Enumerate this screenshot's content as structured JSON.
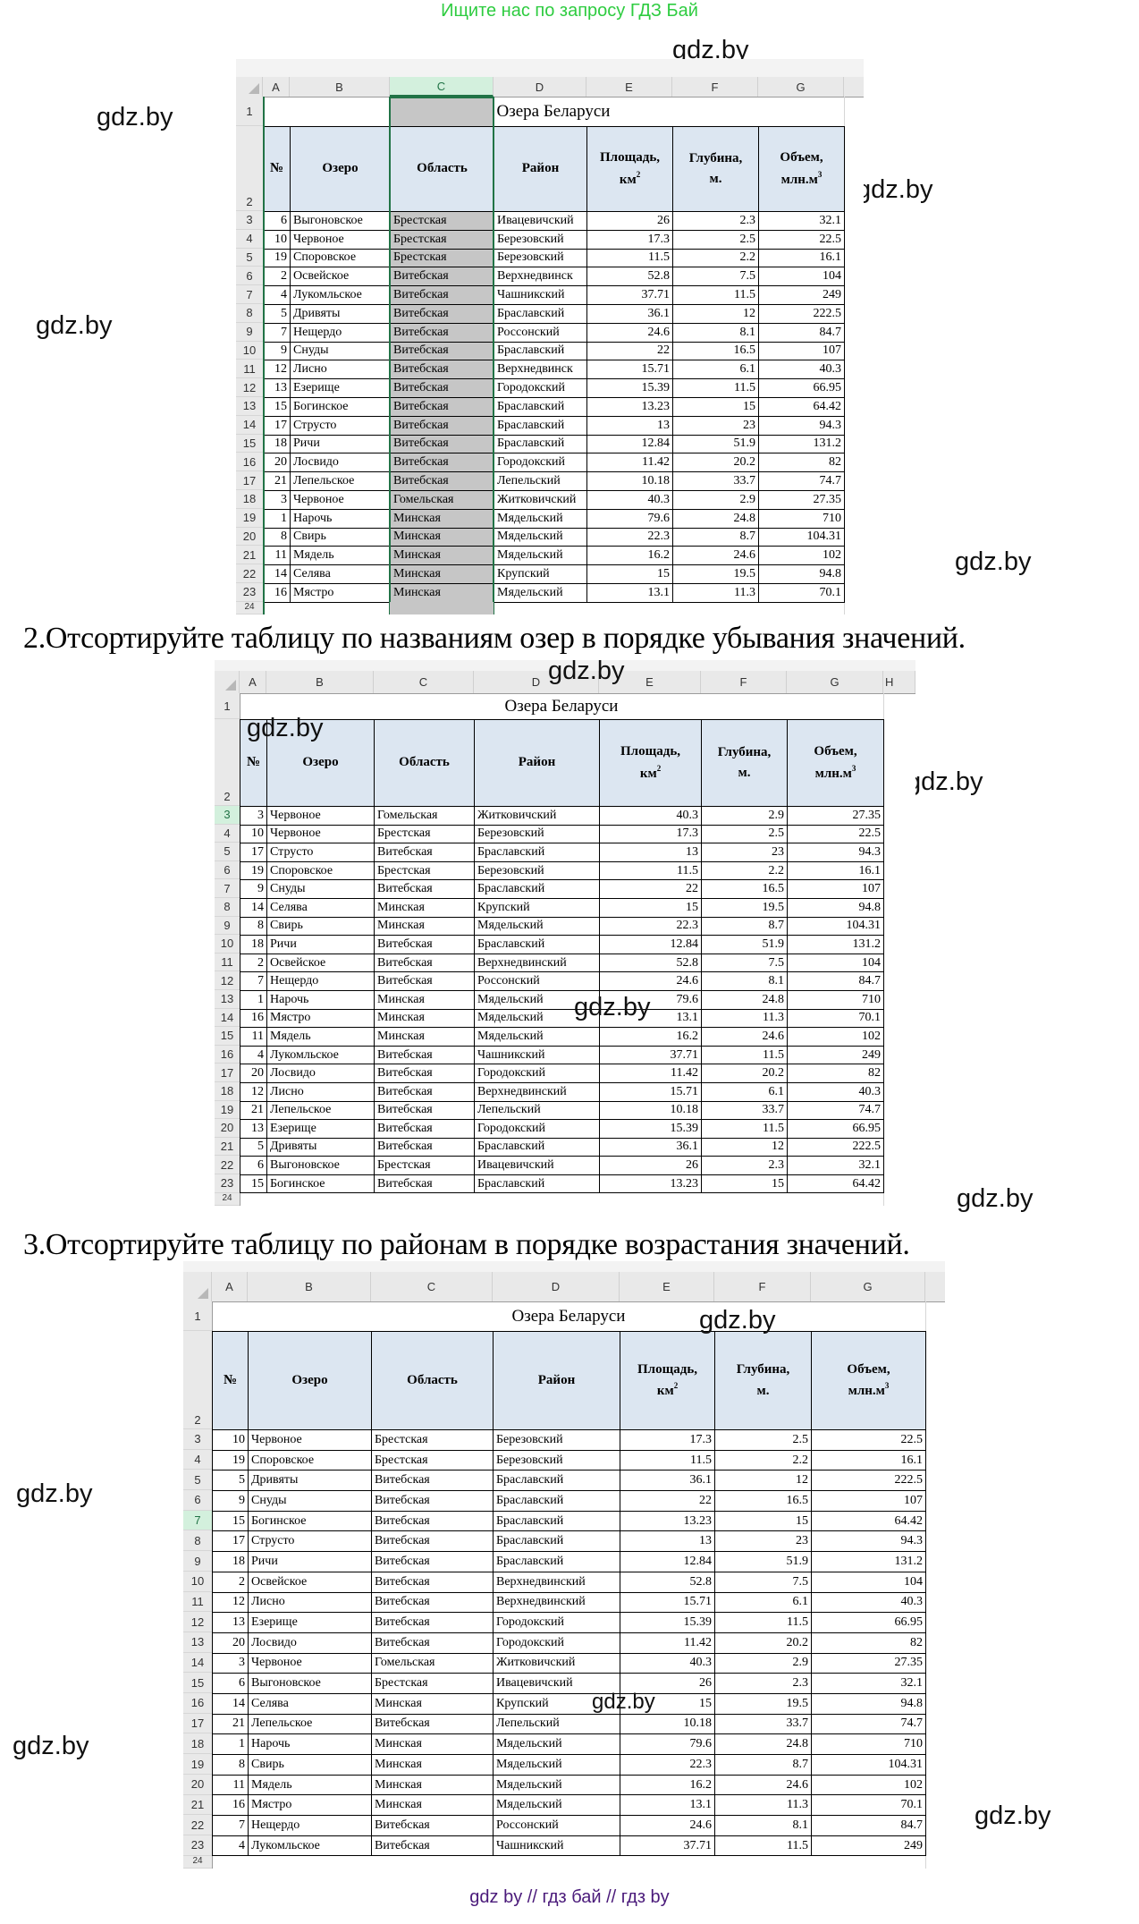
{
  "banner": "Ищите нас по запросу ГДЗ Бай",
  "watermark": "gdz.by",
  "footer": "gdz by  //  гдз бай  //  гдз by",
  "colors": {
    "banner_green": "#2ecc40",
    "footer_purple": "#4a1a7a",
    "header_fill": "#dce6f1",
    "selected_fill": "#c6c6c6",
    "excel_green": "#217346"
  },
  "columns": [
    "A",
    "B",
    "C",
    "D",
    "E",
    "F",
    "G"
  ],
  "sheet_title": "Озера Беларуси",
  "headers": {
    "num": "№",
    "lake": "Озеро",
    "region": "Область",
    "district": "Район",
    "area": "Площадь,",
    "area_unit": "км",
    "area_sup": "2",
    "depth": "Глубина,",
    "depth_unit": "м.",
    "volume": "Объем,",
    "volume_unit": "млн.м",
    "volume_sup": "3"
  },
  "tables": [
    {
      "instruction": "",
      "selected_column": "C",
      "rows": [
        {
          "n": "6",
          "lake": "Выгоновское",
          "region": "Брестская",
          "district": "Ивацевичский",
          "area": "26",
          "depth": "2.3",
          "volume": "32.1"
        },
        {
          "n": "10",
          "lake": "Червоное",
          "region": "Брестская",
          "district": "Березовский",
          "area": "17.3",
          "depth": "2.5",
          "volume": "22.5"
        },
        {
          "n": "19",
          "lake": "Споровское",
          "region": "Брестская",
          "district": "Березовский",
          "area": "11.5",
          "depth": "2.2",
          "volume": "16.1"
        },
        {
          "n": "2",
          "lake": "Освейское",
          "region": "Витебская",
          "district": "Верхнедвинск",
          "area": "52.8",
          "depth": "7.5",
          "volume": "104"
        },
        {
          "n": "4",
          "lake": "Лукомльское",
          "region": "Витебская",
          "district": "Чашникский",
          "area": "37.71",
          "depth": "11.5",
          "volume": "249"
        },
        {
          "n": "5",
          "lake": "Дривяты",
          "region": "Витебская",
          "district": "Браславский",
          "area": "36.1",
          "depth": "12",
          "volume": "222.5"
        },
        {
          "n": "7",
          "lake": "Нещердо",
          "region": "Витебская",
          "district": "Россонский",
          "area": "24.6",
          "depth": "8.1",
          "volume": "84.7"
        },
        {
          "n": "9",
          "lake": "Снуды",
          "region": "Витебская",
          "district": "Браславский",
          "area": "22",
          "depth": "16.5",
          "volume": "107"
        },
        {
          "n": "12",
          "lake": "Лисно",
          "region": "Витебская",
          "district": "Верхнедвинск",
          "area": "15.71",
          "depth": "6.1",
          "volume": "40.3"
        },
        {
          "n": "13",
          "lake": "Езерище",
          "region": "Витебская",
          "district": "Городокский",
          "area": "15.39",
          "depth": "11.5",
          "volume": "66.95"
        },
        {
          "n": "15",
          "lake": "Богинское",
          "region": "Витебская",
          "district": "Браславский",
          "area": "13.23",
          "depth": "15",
          "volume": "64.42"
        },
        {
          "n": "17",
          "lake": "Струсто",
          "region": "Витебская",
          "district": "Браславский",
          "area": "13",
          "depth": "23",
          "volume": "94.3"
        },
        {
          "n": "18",
          "lake": "Ричи",
          "region": "Витебская",
          "district": "Браславский",
          "area": "12.84",
          "depth": "51.9",
          "volume": "131.2"
        },
        {
          "n": "20",
          "lake": "Лосвидо",
          "region": "Витебская",
          "district": "Городокский",
          "area": "11.42",
          "depth": "20.2",
          "volume": "82"
        },
        {
          "n": "21",
          "lake": "Лепельское",
          "region": "Витебская",
          "district": "Лепельский",
          "area": "10.18",
          "depth": "33.7",
          "volume": "74.7"
        },
        {
          "n": "3",
          "lake": "Червоное",
          "region": "Гомельская",
          "district": "Житковичский",
          "area": "40.3",
          "depth": "2.9",
          "volume": "27.35"
        },
        {
          "n": "1",
          "lake": "Нарочь",
          "region": "Минская",
          "district": "Мядельский",
          "area": "79.6",
          "depth": "24.8",
          "volume": "710"
        },
        {
          "n": "8",
          "lake": "Свирь",
          "region": "Минская",
          "district": "Мядельский",
          "area": "22.3",
          "depth": "8.7",
          "volume": "104.31"
        },
        {
          "n": "11",
          "lake": "Мядель",
          "region": "Минская",
          "district": "Мядельский",
          "area": "16.2",
          "depth": "24.6",
          "volume": "102"
        },
        {
          "n": "14",
          "lake": "Селява",
          "region": "Минская",
          "district": "Крупский",
          "area": "15",
          "depth": "19.5",
          "volume": "94.8"
        },
        {
          "n": "16",
          "lake": "Мястро",
          "region": "Минская",
          "district": "Мядельский",
          "area": "13.1",
          "depth": "11.3",
          "volume": "70.1"
        }
      ]
    },
    {
      "instruction": "2.Отсортируйте таблицу по названиям озер в порядке убывания значений.",
      "extra_column": "H",
      "rows": [
        {
          "n": "3",
          "lake": "Червоное",
          "region": "Гомельская",
          "district": "Житковичский",
          "area": "40.3",
          "depth": "2.9",
          "volume": "27.35"
        },
        {
          "n": "10",
          "lake": "Червоное",
          "region": "Брестская",
          "district": "Березовский",
          "area": "17.3",
          "depth": "2.5",
          "volume": "22.5"
        },
        {
          "n": "17",
          "lake": "Струсто",
          "region": "Витебская",
          "district": "Браславский",
          "area": "13",
          "depth": "23",
          "volume": "94.3"
        },
        {
          "n": "19",
          "lake": "Споровское",
          "region": "Брестская",
          "district": "Березовский",
          "area": "11.5",
          "depth": "2.2",
          "volume": "16.1"
        },
        {
          "n": "9",
          "lake": "Снуды",
          "region": "Витебская",
          "district": "Браславский",
          "area": "22",
          "depth": "16.5",
          "volume": "107"
        },
        {
          "n": "14",
          "lake": "Селява",
          "region": "Минская",
          "district": "Крупский",
          "area": "15",
          "depth": "19.5",
          "volume": "94.8"
        },
        {
          "n": "8",
          "lake": "Свирь",
          "region": "Минская",
          "district": "Мядельский",
          "area": "22.3",
          "depth": "8.7",
          "volume": "104.31"
        },
        {
          "n": "18",
          "lake": "Ричи",
          "region": "Витебская",
          "district": "Браславский",
          "area": "12.84",
          "depth": "51.9",
          "volume": "131.2"
        },
        {
          "n": "2",
          "lake": "Освейское",
          "region": "Витебская",
          "district": "Верхнедвинский",
          "area": "52.8",
          "depth": "7.5",
          "volume": "104"
        },
        {
          "n": "7",
          "lake": "Нещердо",
          "region": "Витебская",
          "district": "Россонский",
          "area": "24.6",
          "depth": "8.1",
          "volume": "84.7"
        },
        {
          "n": "1",
          "lake": "Нарочь",
          "region": "Минская",
          "district": "Мядельский",
          "area": "79.6",
          "depth": "24.8",
          "volume": "710"
        },
        {
          "n": "16",
          "lake": "Мястро",
          "region": "Минская",
          "district": "Мядельский",
          "area": "13.1",
          "depth": "11.3",
          "volume": "70.1"
        },
        {
          "n": "11",
          "lake": "Мядель",
          "region": "Минская",
          "district": "Мядельский",
          "area": "16.2",
          "depth": "24.6",
          "volume": "102"
        },
        {
          "n": "4",
          "lake": "Лукомльское",
          "region": "Витебская",
          "district": "Чашникский",
          "area": "37.71",
          "depth": "11.5",
          "volume": "249"
        },
        {
          "n": "20",
          "lake": "Лосвидо",
          "region": "Витебская",
          "district": "Городокский",
          "area": "11.42",
          "depth": "20.2",
          "volume": "82"
        },
        {
          "n": "12",
          "lake": "Лисно",
          "region": "Витебская",
          "district": "Верхнедвинский",
          "area": "15.71",
          "depth": "6.1",
          "volume": "40.3"
        },
        {
          "n": "21",
          "lake": "Лепельское",
          "region": "Витебская",
          "district": "Лепельский",
          "area": "10.18",
          "depth": "33.7",
          "volume": "74.7"
        },
        {
          "n": "13",
          "lake": "Езерище",
          "region": "Витебская",
          "district": "Городокский",
          "area": "15.39",
          "depth": "11.5",
          "volume": "66.95"
        },
        {
          "n": "5",
          "lake": "Дривяты",
          "region": "Витебская",
          "district": "Браславский",
          "area": "36.1",
          "depth": "12",
          "volume": "222.5"
        },
        {
          "n": "6",
          "lake": "Выгоновское",
          "region": "Брестская",
          "district": "Ивацевичский",
          "area": "26",
          "depth": "2.3",
          "volume": "32.1"
        },
        {
          "n": "15",
          "lake": "Богинское",
          "region": "Витебская",
          "district": "Браславский",
          "area": "13.23",
          "depth": "15",
          "volume": "64.42"
        }
      ]
    },
    {
      "instruction": "3.Отсортируйте таблицу по районам в порядке возрастания значений.",
      "rows": [
        {
          "n": "10",
          "lake": "Червоное",
          "region": "Брестская",
          "district": "Березовский",
          "area": "17.3",
          "depth": "2.5",
          "volume": "22.5"
        },
        {
          "n": "19",
          "lake": "Споровское",
          "region": "Брестская",
          "district": "Березовский",
          "area": "11.5",
          "depth": "2.2",
          "volume": "16.1"
        },
        {
          "n": "5",
          "lake": "Дривяты",
          "region": "Витебская",
          "district": "Браславский",
          "area": "36.1",
          "depth": "12",
          "volume": "222.5"
        },
        {
          "n": "9",
          "lake": "Снуды",
          "region": "Витебская",
          "district": "Браславский",
          "area": "22",
          "depth": "16.5",
          "volume": "107"
        },
        {
          "n": "15",
          "lake": "Богинское",
          "region": "Витебская",
          "district": "Браславский",
          "area": "13.23",
          "depth": "15",
          "volume": "64.42"
        },
        {
          "n": "17",
          "lake": "Струсто",
          "region": "Витебская",
          "district": "Браславский",
          "area": "13",
          "depth": "23",
          "volume": "94.3"
        },
        {
          "n": "18",
          "lake": "Ричи",
          "region": "Витебская",
          "district": "Браславский",
          "area": "12.84",
          "depth": "51.9",
          "volume": "131.2"
        },
        {
          "n": "2",
          "lake": "Освейское",
          "region": "Витебская",
          "district": "Верхнедвинский",
          "area": "52.8",
          "depth": "7.5",
          "volume": "104"
        },
        {
          "n": "12",
          "lake": "Лисно",
          "region": "Витебская",
          "district": "Верхнедвинский",
          "area": "15.71",
          "depth": "6.1",
          "volume": "40.3"
        },
        {
          "n": "13",
          "lake": "Езерище",
          "region": "Витебская",
          "district": "Городокский",
          "area": "15.39",
          "depth": "11.5",
          "volume": "66.95"
        },
        {
          "n": "20",
          "lake": "Лосвидо",
          "region": "Витебская",
          "district": "Городокский",
          "area": "11.42",
          "depth": "20.2",
          "volume": "82"
        },
        {
          "n": "3",
          "lake": "Червоное",
          "region": "Гомельская",
          "district": "Житковичский",
          "area": "40.3",
          "depth": "2.9",
          "volume": "27.35"
        },
        {
          "n": "6",
          "lake": "Выгоновское",
          "region": "Брестская",
          "district": "Ивацевичский",
          "area": "26",
          "depth": "2.3",
          "volume": "32.1"
        },
        {
          "n": "14",
          "lake": "Селява",
          "region": "Минская",
          "district": "Крупский",
          "area": "15",
          "depth": "19.5",
          "volume": "94.8"
        },
        {
          "n": "21",
          "lake": "Лепельское",
          "region": "Витебская",
          "district": "Лепельский",
          "area": "10.18",
          "depth": "33.7",
          "volume": "74.7"
        },
        {
          "n": "1",
          "lake": "Нарочь",
          "region": "Минская",
          "district": "Мядельский",
          "area": "79.6",
          "depth": "24.8",
          "volume": "710"
        },
        {
          "n": "8",
          "lake": "Свирь",
          "region": "Минская",
          "district": "Мядельский",
          "area": "22.3",
          "depth": "8.7",
          "volume": "104.31"
        },
        {
          "n": "11",
          "lake": "Мядель",
          "region": "Минская",
          "district": "Мядельский",
          "area": "16.2",
          "depth": "24.6",
          "volume": "102"
        },
        {
          "n": "16",
          "lake": "Мястро",
          "region": "Минская",
          "district": "Мядельский",
          "area": "13.1",
          "depth": "11.3",
          "volume": "70.1"
        },
        {
          "n": "7",
          "lake": "Нещердо",
          "region": "Витебская",
          "district": "Россонский",
          "area": "24.6",
          "depth": "8.1",
          "volume": "84.7"
        },
        {
          "n": "4",
          "lake": "Лукомльское",
          "region": "Витебская",
          "district": "Чашникский",
          "area": "37.71",
          "depth": "11.5",
          "volume": "249"
        }
      ]
    }
  ],
  "row_numbers": [
    "1",
    "2",
    "3",
    "4",
    "5",
    "6",
    "7",
    "8",
    "9",
    "10",
    "11",
    "12",
    "13",
    "14",
    "15",
    "16",
    "17",
    "18",
    "19",
    "20",
    "21",
    "22",
    "23",
    "24"
  ]
}
